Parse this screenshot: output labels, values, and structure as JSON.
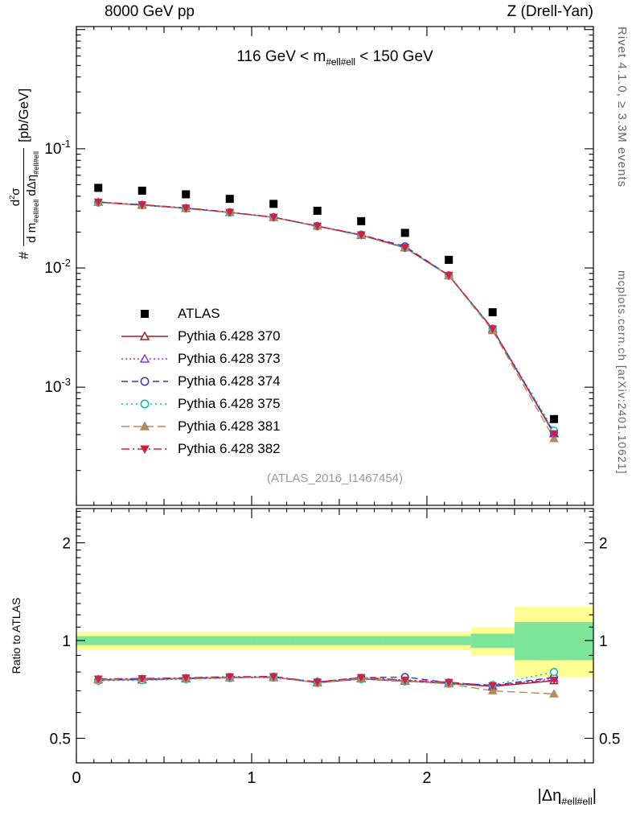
{
  "header": {
    "left": "8000 GeV pp",
    "right": "Z (Drell-Yan)"
  },
  "title": {
    "pre": "116 GeV < m",
    "sub": "#ell#ell",
    "post": " < 150 GeV"
  },
  "labels": {
    "y_hash": "#",
    "y_num_1": "d",
    "y_num_sup": "2",
    "y_num_2": "σ",
    "y_den_1": "d m",
    "y_den_sub1": "#ell#ell",
    "y_den_2": " dΔη",
    "y_den_sub2": "#ell#ell",
    "y_unit": "[pb/GeV]",
    "ratio": "Ratio to ATLAS",
    "x_pre": "|Δη",
    "x_sub": "#ell#ell",
    "x_post": "|"
  },
  "side_notes": {
    "right_top": "Rivet 4.1.0, ≥ 3.3M events",
    "right_bottom": "mcplots.cern.ch [arXiv:2401.10621]"
  },
  "watermark": "(ATLAS_2016_I1467454)",
  "chart_data": {
    "type": "line",
    "title": "116 GeV < m_#ell#ell < 150 GeV",
    "xlabel": "|Δη_#ell#ell|",
    "ylabel": "# d²σ/(d m_#ell#ell dΔη_#ell#ell) [pb/GeV]",
    "ratio_ylabel": "Ratio to ATLAS",
    "grid": false,
    "legend_position": "middle-left",
    "y_scale": "log",
    "ratio_scale": "log",
    "xlim": [
      0,
      2.95
    ],
    "ylim_main": [
      0.000102,
      1.06
    ],
    "ylim_ratio": [
      0.42,
      2.55
    ],
    "x_major_ticks": [
      0,
      1,
      2
    ],
    "y_major_tick_exponents": [
      -1,
      -2,
      -3
    ],
    "ratio_ticks": [
      0.5,
      1,
      2
    ],
    "x": [
      0.125,
      0.375,
      0.625,
      0.875,
      1.125,
      1.375,
      1.625,
      1.875,
      2.125,
      2.375,
      2.725
    ],
    "atlas": {
      "name": "ATLAS",
      "color": "#000000",
      "marker": "square-filled",
      "values": [
        0.047,
        0.0445,
        0.0415,
        0.038,
        0.0345,
        0.0302,
        0.0247,
        0.0197,
        0.0117,
        0.00425,
        0.00054
      ]
    },
    "series": [
      {
        "name": "Pythia 6.428 370",
        "color": "#a02030",
        "dash": "",
        "marker": "triangle-open",
        "values": [
          0.0356,
          0.0337,
          0.0317,
          0.0292,
          0.0266,
          0.0224,
          0.0188,
          0.0148,
          0.00863,
          0.00307,
          0.000406
        ],
        "ratio": [
          0.757,
          0.758,
          0.764,
          0.768,
          0.772,
          0.741,
          0.762,
          0.75,
          0.738,
          0.722,
          0.752
        ]
      },
      {
        "name": "Pythia 6.428 373",
        "color": "#9933cc",
        "dash": "2 3",
        "marker": "triangle-open",
        "values": [
          0.0357,
          0.0336,
          0.0316,
          0.0293,
          0.0265,
          0.0225,
          0.0189,
          0.0149,
          0.00866,
          0.00308,
          0.000413
        ],
        "ratio": [
          0.76,
          0.756,
          0.762,
          0.77,
          0.768,
          0.744,
          0.765,
          0.755,
          0.74,
          0.724,
          0.765
        ]
      },
      {
        "name": "Pythia 6.428 374",
        "color": "#3333cc",
        "dash": "8 5",
        "marker": "circle-open",
        "values": [
          0.0355,
          0.0338,
          0.0318,
          0.0293,
          0.0266,
          0.0225,
          0.019,
          0.0152,
          0.00868,
          0.00309,
          0.000416
        ],
        "ratio": [
          0.755,
          0.76,
          0.765,
          0.772,
          0.77,
          0.746,
          0.768,
          0.772,
          0.742,
          0.728,
          0.77
        ]
      },
      {
        "name": "Pythia 6.428 375",
        "color": "#00b8b8",
        "dash": "2 4",
        "marker": "circle-open",
        "values": [
          0.0353,
          0.0336,
          0.0315,
          0.0291,
          0.0267,
          0.0223,
          0.0188,
          0.0147,
          0.00861,
          0.0031,
          0.000432
        ],
        "ratio": [
          0.752,
          0.754,
          0.76,
          0.766,
          0.774,
          0.74,
          0.76,
          0.748,
          0.736,
          0.73,
          0.8
        ]
      },
      {
        "name": "Pythia 6.428 381",
        "color": "#b5895b",
        "dash": "10 5",
        "marker": "triangle-filled",
        "values": [
          0.0356,
          0.0339,
          0.0318,
          0.0293,
          0.0266,
          0.0224,
          0.0189,
          0.0148,
          0.0086,
          0.00298,
          0.00037
        ],
        "ratio": [
          0.758,
          0.762,
          0.766,
          0.77,
          0.77,
          0.742,
          0.764,
          0.752,
          0.735,
          0.7,
          0.685
        ]
      },
      {
        "name": "Pythia 6.428 382",
        "color": "#cc2244",
        "dash": "10 4 2 4",
        "marker": "triangle-down-filled",
        "values": [
          0.0358,
          0.034,
          0.0319,
          0.0294,
          0.0267,
          0.0225,
          0.019,
          0.0149,
          0.0087,
          0.00309,
          0.000408
        ],
        "ratio": [
          0.762,
          0.764,
          0.768,
          0.774,
          0.775,
          0.745,
          0.77,
          0.756,
          0.744,
          0.726,
          0.756
        ]
      }
    ],
    "ratio_band": {
      "bin_edges": [
        0,
        0.25,
        0.5,
        0.75,
        1.0,
        1.25,
        1.5,
        1.75,
        2.0,
        2.25,
        2.5,
        2.95
      ],
      "yellow": {
        "color": "#ffff94",
        "lo": [
          0.935,
          0.935,
          0.935,
          0.935,
          0.935,
          0.935,
          0.935,
          0.935,
          0.935,
          0.9,
          0.77
        ],
        "hi": [
          1.065,
          1.065,
          1.065,
          1.065,
          1.065,
          1.065,
          1.065,
          1.065,
          1.065,
          1.1,
          1.27
        ]
      },
      "green": {
        "color": "#7ce59a",
        "lo": [
          0.968,
          0.968,
          0.968,
          0.968,
          0.968,
          0.968,
          0.968,
          0.968,
          0.968,
          0.95,
          0.87
        ],
        "hi": [
          1.032,
          1.032,
          1.032,
          1.032,
          1.032,
          1.032,
          1.032,
          1.032,
          1.032,
          1.05,
          1.14
        ]
      }
    }
  }
}
